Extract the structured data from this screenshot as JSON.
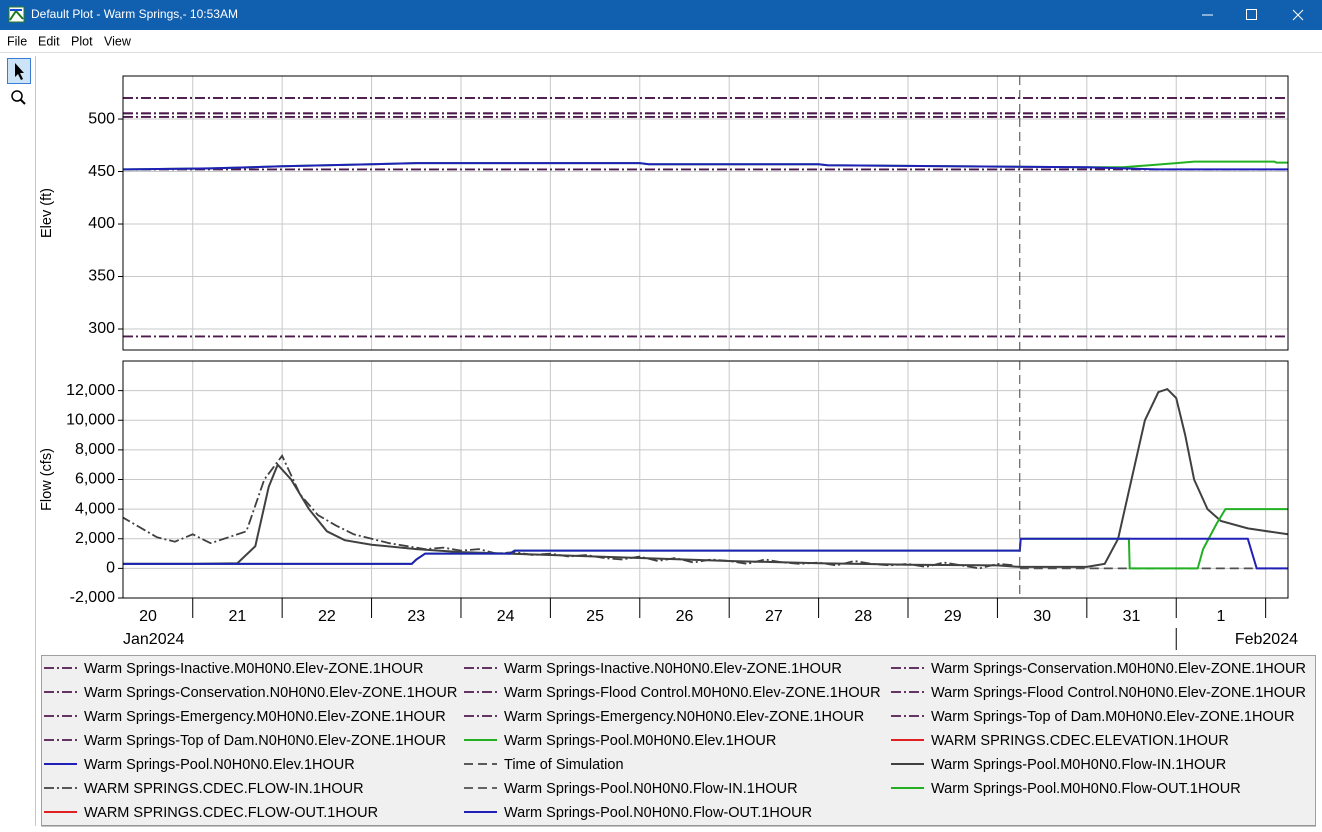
{
  "window": {
    "title": "Default Plot - Warm Springs,- 10:53AM",
    "menu": [
      "File",
      "Edit",
      "Plot",
      "View"
    ]
  },
  "chart_data": [
    {
      "type": "line",
      "ylabel": "Elev (ft)",
      "xlim": [
        20.22,
        33.25
      ],
      "ylim": [
        280,
        541
      ],
      "yticks": [
        300,
        350,
        400,
        450,
        500
      ],
      "xticks": [
        21,
        22,
        23,
        24,
        25,
        26,
        27,
        28,
        29,
        30,
        31,
        32,
        33
      ],
      "grid": true,
      "series": [
        {
          "name": "Warm Springs-Inactive.M0H0N0.Elev-ZONE.1HOUR",
          "color": "#4d1a4d",
          "dash": "dashdot",
          "x": [
            20.22,
            33.25
          ],
          "values": [
            293,
            293
          ]
        },
        {
          "name": "Warm Springs-Inactive.N0H0N0.Elev-ZONE.1HOUR",
          "color": "#4d1a4d",
          "dash": "dashdot",
          "x": [
            20.22,
            33.25
          ],
          "values": [
            293,
            293
          ]
        },
        {
          "name": "Warm Springs-Conservation.M0H0N0.Elev-ZONE.1HOUR",
          "color": "#4d1a4d",
          "dash": "dashdot",
          "x": [
            20.22,
            33.25
          ],
          "values": [
            452,
            452
          ]
        },
        {
          "name": "Warm Springs-Conservation.N0H0N0.Elev-ZONE.1HOUR",
          "color": "#4d1a4d",
          "dash": "dashdot",
          "x": [
            20.22,
            33.25
          ],
          "values": [
            452,
            452
          ]
        },
        {
          "name": "Warm Springs-Flood Control.M0H0N0.Elev-ZONE.1HOUR",
          "color": "#4d1a4d",
          "dash": "dashdot",
          "x": [
            20.22,
            33.25
          ],
          "values": [
            502,
            502
          ]
        },
        {
          "name": "Warm Springs-Flood Control.N0H0N0.Elev-ZONE.1HOUR",
          "color": "#4d1a4d",
          "dash": "dashdot",
          "x": [
            20.22,
            33.25
          ],
          "values": [
            502,
            502
          ]
        },
        {
          "name": "Warm Springs-Emergency.M0H0N0.Elev-ZONE.1HOUR",
          "color": "#4d1a4d",
          "dash": "dashdot",
          "x": [
            20.22,
            33.25
          ],
          "values": [
            505.5,
            505.5
          ]
        },
        {
          "name": "Warm Springs-Emergency.N0H0N0.Elev-ZONE.1HOUR",
          "color": "#4d1a4d",
          "dash": "dashdot",
          "x": [
            20.22,
            33.25
          ],
          "values": [
            505.5,
            505.5
          ]
        },
        {
          "name": "Warm Springs-Top of Dam.M0H0N0.Elev-ZONE.1HOUR",
          "color": "#4d1a4d",
          "dash": "dashdot",
          "x": [
            20.22,
            33.25
          ],
          "values": [
            520,
            520
          ]
        },
        {
          "name": "Warm Springs-Top of Dam.N0H0N0.Elev-ZONE.1HOUR",
          "color": "#4d1a4d",
          "dash": "dashdot",
          "x": [
            20.22,
            33.25
          ],
          "values": [
            520,
            520
          ]
        },
        {
          "name": "Warm Springs-Pool.M0H0N0.Elev.1HOUR",
          "color": "#22b022",
          "dash": "solid",
          "x": [
            20.22,
            21.2,
            22.0,
            23.0,
            23.5,
            26.0,
            26.1,
            28.0,
            28.1,
            29.5,
            31.0,
            31.4,
            32.0,
            32.2,
            33.1,
            33.12,
            33.25
          ],
          "values": [
            452,
            453,
            455,
            457,
            458,
            458,
            457,
            457,
            456,
            455,
            454,
            454,
            458,
            459.5,
            459.5,
            458.5,
            458.5
          ]
        },
        {
          "name": "WARM SPRINGS.CDEC.ELEVATION.1HOUR",
          "color": "#e02020",
          "dash": "solid",
          "x": [],
          "values": []
        },
        {
          "name": "Warm Springs-Pool.N0H0N0.Elev.1HOUR",
          "color": "#2020b8",
          "dash": "solid",
          "x": [
            20.22,
            21.2,
            22.0,
            23.0,
            23.5,
            26.0,
            26.1,
            28.0,
            28.1,
            29.5,
            31.0,
            31.8,
            33.25
          ],
          "values": [
            452,
            453,
            455,
            457,
            458,
            458,
            457,
            457,
            456,
            455,
            454,
            452,
            452
          ]
        },
        {
          "name": "Time of Simulation",
          "color": "#444444",
          "dash": "dash",
          "type": "vline",
          "x": [
            30.25
          ]
        }
      ]
    },
    {
      "type": "line",
      "ylabel": "Flow (cfs)",
      "xlim": [
        20.22,
        33.25
      ],
      "ylim": [
        -2000,
        14000
      ],
      "yticks": [
        {
          "value": 12000,
          "label": "12,000"
        },
        {
          "value": 10000,
          "label": "10,000"
        },
        {
          "value": 8000,
          "label": "8,000"
        },
        {
          "value": 6000,
          "label": "6,000"
        },
        {
          "value": 4000,
          "label": "4,000"
        },
        {
          "value": 2000,
          "label": "2,000"
        },
        0,
        {
          "value": -2000,
          "label": "-2,000"
        }
      ],
      "xticks": [
        21,
        22,
        23,
        24,
        25,
        26,
        27,
        28,
        29,
        30,
        31,
        32,
        33
      ],
      "xtick_labels": [
        {
          "value": 20.5,
          "label": "20"
        },
        {
          "value": 21.5,
          "label": "21"
        },
        {
          "value": 22.5,
          "label": "22"
        },
        {
          "value": 23.5,
          "label": "23"
        },
        {
          "value": 24.5,
          "label": "24"
        },
        {
          "value": 25.5,
          "label": "25"
        },
        {
          "value": 26.5,
          "label": "26"
        },
        {
          "value": 27.5,
          "label": "27"
        },
        {
          "value": 28.5,
          "label": "28"
        },
        {
          "value": 29.5,
          "label": "29"
        },
        {
          "value": 30.5,
          "label": "30"
        },
        {
          "value": 31.5,
          "label": "31"
        },
        {
          "value": 32.5,
          "label": "1"
        }
      ],
      "x_group_labels": [
        {
          "value": 1,
          "label": "Jan2024"
        },
        {
          "value": 32,
          "label": "Feb2024"
        }
      ],
      "grid": true,
      "series": [
        {
          "name": "Warm Springs-Pool.M0H0N0.Flow-IN.1HOUR",
          "color": "#404040",
          "dash": "solid",
          "x": [
            20.22,
            21.0,
            21.5,
            21.7,
            21.85,
            21.95,
            22.1,
            22.3,
            22.5,
            22.7,
            23.0,
            23.5,
            24.0,
            25.0,
            26.0,
            27.0,
            28.0,
            29.0,
            30.0,
            30.25,
            31.0,
            31.2,
            31.35,
            31.5,
            31.65,
            31.8,
            31.9,
            32.0,
            32.1,
            32.2,
            32.35,
            32.5,
            32.8,
            33.25
          ],
          "values": [
            300,
            300,
            350,
            1500,
            5500,
            7000,
            6000,
            4000,
            2500,
            1900,
            1600,
            1300,
            1100,
            900,
            700,
            500,
            350,
            250,
            200,
            100,
            100,
            300,
            2000,
            6000,
            10000,
            11900,
            12100,
            11500,
            9000,
            6000,
            4000,
            3200,
            2700,
            2300
          ]
        },
        {
          "name": "WARM SPRINGS.CDEC.FLOW-IN.1HOUR",
          "color": "#404040",
          "dash": "dashdot",
          "x": [
            20.2,
            20.4,
            20.6,
            20.8,
            21.0,
            21.2,
            21.4,
            21.6,
            21.8,
            22.0,
            22.2,
            22.4,
            22.6,
            22.8,
            23.0,
            23.2,
            23.4,
            23.6,
            23.8,
            24.0,
            24.2,
            24.4,
            24.6,
            24.8,
            25.0,
            25.2,
            25.4,
            25.6,
            25.8,
            26.0,
            26.2,
            26.4,
            26.6,
            26.8,
            27.0,
            27.2,
            27.4,
            27.6,
            27.8,
            28.0,
            28.2,
            28.4,
            28.6,
            28.8,
            29.0,
            29.2,
            29.4,
            29.6,
            29.8,
            30.0,
            30.2
          ],
          "values": [
            3500,
            2800,
            2100,
            1800,
            2300,
            1700,
            2100,
            2500,
            6000,
            7600,
            5000,
            3600,
            2900,
            2300,
            2000,
            1700,
            1500,
            1300,
            1400,
            1200,
            1300,
            1000,
            1100,
            900,
            1000,
            800,
            900,
            700,
            600,
            800,
            500,
            700,
            400,
            600,
            500,
            300,
            600,
            400,
            300,
            400,
            200,
            500,
            300,
            200,
            300,
            100,
            400,
            200,
            0,
            300,
            200
          ]
        },
        {
          "name": "Warm Springs-Pool.N0H0N0.Flow-IN.1HOUR",
          "color": "#505050",
          "dash": "dash",
          "x": [
            30.25,
            33.25
          ],
          "values": [
            0,
            0
          ]
        },
        {
          "name": "Warm Springs-Pool.M0H0N0.Flow-OUT.1HOUR",
          "color": "#22b022",
          "dash": "solid",
          "x": [
            20.22,
            23.45,
            23.5,
            23.6,
            24.55,
            24.6,
            30.25,
            30.26,
            31.47,
            31.48,
            32.24,
            32.3,
            32.45,
            32.55,
            33.25
          ],
          "values": [
            300,
            300,
            600,
            1000,
            1000,
            1200,
            1200,
            2000,
            2000,
            0,
            0,
            1300,
            3000,
            4000,
            4000
          ]
        },
        {
          "name": "WARM SPRINGS.CDEC.FLOW-OUT.1HOUR",
          "color": "#e02020",
          "dash": "solid",
          "x": [],
          "values": []
        },
        {
          "name": "Warm Springs-Pool.N0H0N0.Flow-OUT.1HOUR",
          "color": "#2020b8",
          "dash": "solid",
          "x": [
            20.22,
            23.45,
            23.5,
            23.6,
            24.55,
            24.6,
            30.25,
            30.26,
            32.8,
            32.9,
            33.25
          ],
          "values": [
            300,
            300,
            600,
            1000,
            1000,
            1200,
            1200,
            2000,
            2000,
            0,
            0
          ]
        }
      ]
    }
  ]
}
